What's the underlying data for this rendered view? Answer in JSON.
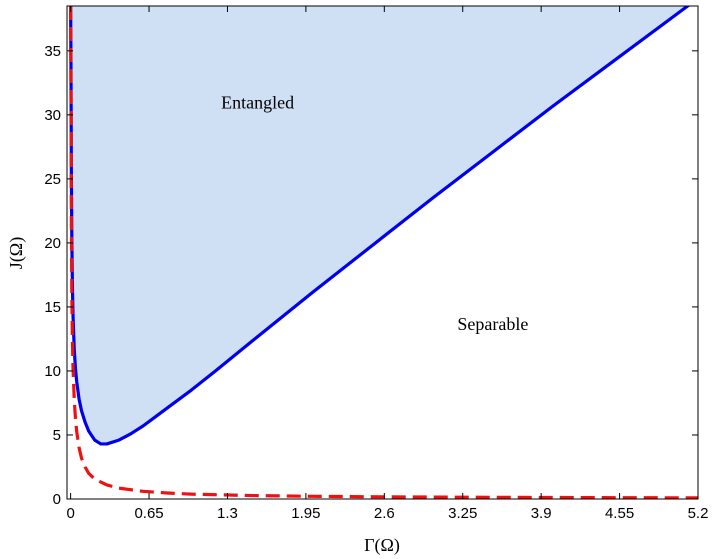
{
  "chart_data": {
    "type": "line",
    "xlabel": "Γ(Ω)",
    "ylabel": "J(Ω)",
    "xlim": [
      -0.03,
      5.2
    ],
    "ylim": [
      0,
      38.5
    ],
    "x_ticks": [
      0,
      0.65,
      1.3,
      1.95,
      2.6,
      3.25,
      3.9,
      4.55,
      5.2
    ],
    "x_tick_labels": [
      "0",
      "0.65",
      "1.3",
      "1.95",
      "2.6",
      "3.25",
      "3.9",
      "4.55",
      "5.2"
    ],
    "y_ticks": [
      0,
      5,
      10,
      15,
      20,
      25,
      30,
      35
    ],
    "y_tick_labels": [
      "0",
      "5",
      "10",
      "15",
      "20",
      "25",
      "30",
      "35"
    ],
    "grid": false,
    "annotations": [
      {
        "text": "Entangled",
        "x": 1.55,
        "y": 30.5
      },
      {
        "text": "Separable",
        "x": 3.5,
        "y": 13.2
      }
    ],
    "colors": {
      "boundary": "#0000ee",
      "separable_bound": "#ee1111",
      "entangled_fill": "#cfe0f5"
    },
    "series": [
      {
        "style": "solid",
        "color": "#0000ee",
        "x": [
          0.0,
          0.003,
          0.006,
          0.01,
          0.015,
          0.02,
          0.03,
          0.04,
          0.05,
          0.07,
          0.09,
          0.12,
          0.15,
          0.2,
          0.25,
          0.3,
          0.4,
          0.5,
          0.6,
          0.7,
          0.8,
          1.0,
          1.2,
          1.5,
          2.0,
          2.5,
          3.0,
          3.5,
          4.0,
          4.5,
          5.0,
          5.2
        ],
        "y": [
          38.5,
          33.7,
          25.6,
          20.2,
          16.5,
          14.3,
          11.7,
          10.2,
          9.2,
          7.8,
          6.9,
          6.0,
          5.3,
          4.6,
          4.3,
          4.3,
          4.6,
          5.1,
          5.7,
          6.4,
          7.1,
          8.5,
          10.0,
          12.3,
          16.1,
          19.8,
          23.5,
          27.1,
          30.7,
          34.2,
          37.7,
          39.1
        ]
      },
      {
        "style": "dashed",
        "color": "#ee1111",
        "x": [
          0.0,
          0.003,
          0.006,
          0.01,
          0.015,
          0.02,
          0.03,
          0.04,
          0.05,
          0.07,
          0.09,
          0.12,
          0.15,
          0.2,
          0.3,
          0.4,
          0.6,
          0.8,
          1.0,
          1.5,
          2.0,
          2.6,
          3.25,
          3.9,
          4.55,
          5.2
        ],
        "y": [
          38.5,
          31.0,
          22.0,
          16.0,
          12.3,
          10.2,
          7.8,
          6.3,
          5.3,
          4.0,
          3.2,
          2.5,
          2.0,
          1.55,
          1.1,
          0.85,
          0.6,
          0.47,
          0.38,
          0.27,
          0.21,
          0.17,
          0.14,
          0.12,
          0.1,
          0.09
        ]
      }
    ]
  }
}
